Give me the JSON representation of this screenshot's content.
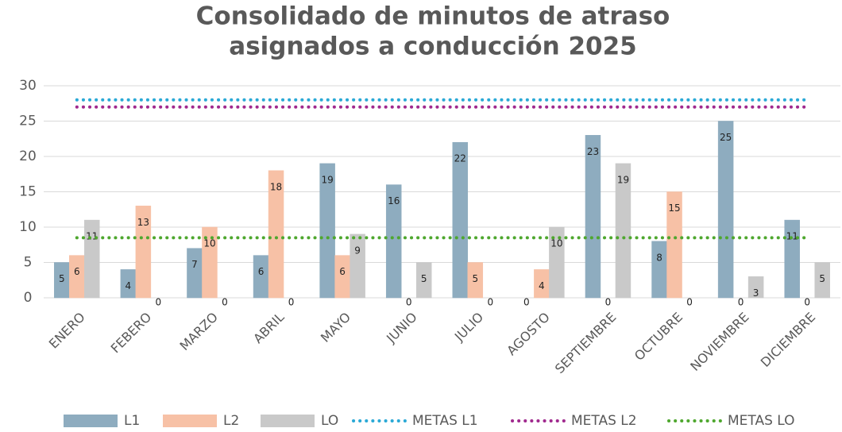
{
  "chart_data": {
    "type": "bar",
    "title": [
      "Consolidado de minutos de atraso",
      "asignados a conducción 2025"
    ],
    "categories": [
      "ENERO",
      "FEBERO",
      "MARZO",
      "ABRIL",
      "MAYO",
      "JUNIO",
      "JULIO",
      "AGOSTO",
      "SEPTIEMBRE",
      "OCTUBRE",
      "NOVIEMBRE",
      "DICIEMBRE"
    ],
    "ylim": [
      0,
      30
    ],
    "yticks": [
      0,
      5,
      10,
      15,
      20,
      25,
      30
    ],
    "grid": true,
    "legend": "bottom",
    "series": [
      {
        "name": "L1",
        "type": "bar",
        "color": "#8eacbf",
        "values": [
          5,
          4,
          7,
          6,
          19,
          16,
          22,
          0,
          23,
          8,
          25,
          11
        ]
      },
      {
        "name": "L2",
        "type": "bar",
        "color": "#f7c1a6",
        "values": [
          6,
          13,
          10,
          18,
          6,
          0,
          5,
          4,
          0,
          15,
          0,
          0
        ]
      },
      {
        "name": "LO",
        "type": "bar",
        "color": "#c9c9c9",
        "values": [
          11,
          0,
          0,
          0,
          9,
          5,
          0,
          10,
          19,
          0,
          3,
          5
        ]
      },
      {
        "name": "METAS L1",
        "type": "line",
        "line_style": "dotted",
        "color": "#2aa9d6",
        "values": [
          28,
          28,
          28,
          28,
          28,
          28,
          28,
          28,
          28,
          28,
          28,
          28
        ]
      },
      {
        "name": "METAS L2",
        "type": "line",
        "line_style": "dotted",
        "color": "#a0298e",
        "values": [
          27,
          27,
          27,
          27,
          27,
          27,
          27,
          27,
          27,
          27,
          27,
          27
        ]
      },
      {
        "name": "METAS LO",
        "type": "line",
        "line_style": "dotted",
        "color": "#4ea72e",
        "values": [
          8.5,
          8.5,
          8.5,
          8.5,
          8.5,
          8.5,
          8.5,
          8.5,
          8.5,
          8.5,
          8.5,
          8.5
        ]
      }
    ]
  }
}
